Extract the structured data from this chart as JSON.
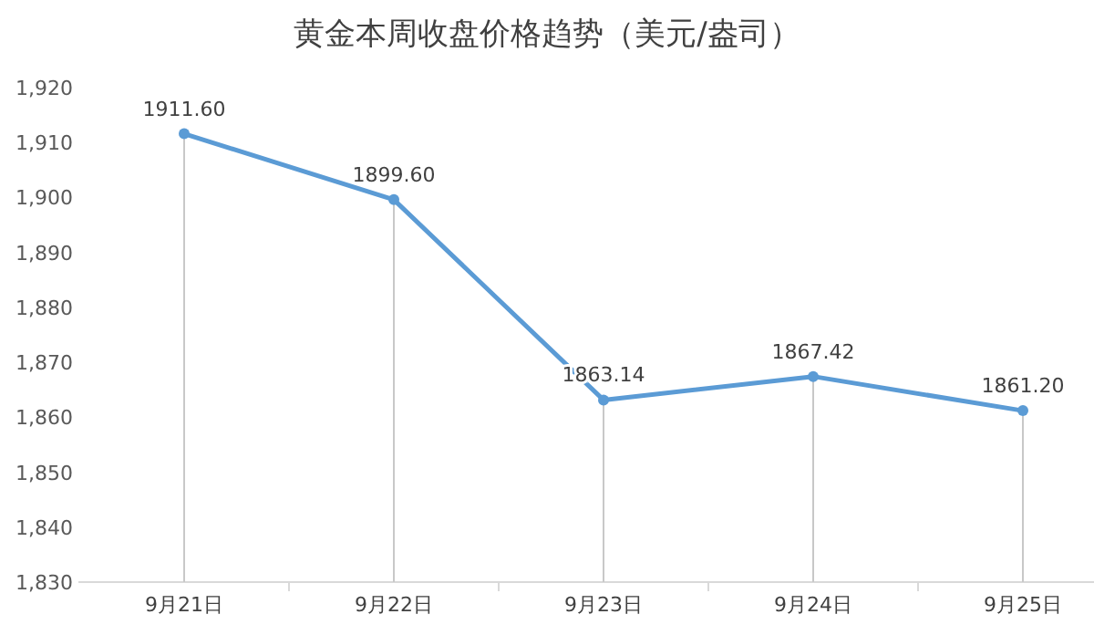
{
  "chart_data": {
    "type": "line",
    "title": "黄金本周收盘价格趋势（美元/盎司）",
    "categories": [
      "9月21日",
      "9月22日",
      "9月23日",
      "9月24日",
      "9月25日"
    ],
    "series": [
      {
        "color": "#5b9bd5",
        "values": [
          1911.6,
          1899.6,
          1863.14,
          1867.42,
          1861.2
        ]
      }
    ],
    "value_labels": [
      "1911.60",
      "1899.60",
      "1863.14",
      "1867.42",
      "1861.20"
    ],
    "ylim": [
      1830,
      1920
    ],
    "yticks": [
      {
        "value": 1830,
        "label": "1,830"
      },
      {
        "value": 1840,
        "label": "1,840"
      },
      {
        "value": 1850,
        "label": "1,850"
      },
      {
        "value": 1860,
        "label": "1,860"
      },
      {
        "value": 1870,
        "label": "1,870"
      },
      {
        "value": 1880,
        "label": "1,880"
      },
      {
        "value": 1890,
        "label": "1,890"
      },
      {
        "value": 1900,
        "label": "1,900"
      },
      {
        "value": 1910,
        "label": "1,910"
      },
      {
        "value": 1920,
        "label": "1,920"
      }
    ],
    "marker": "circle",
    "line_style": "solid",
    "grid": "x"
  }
}
